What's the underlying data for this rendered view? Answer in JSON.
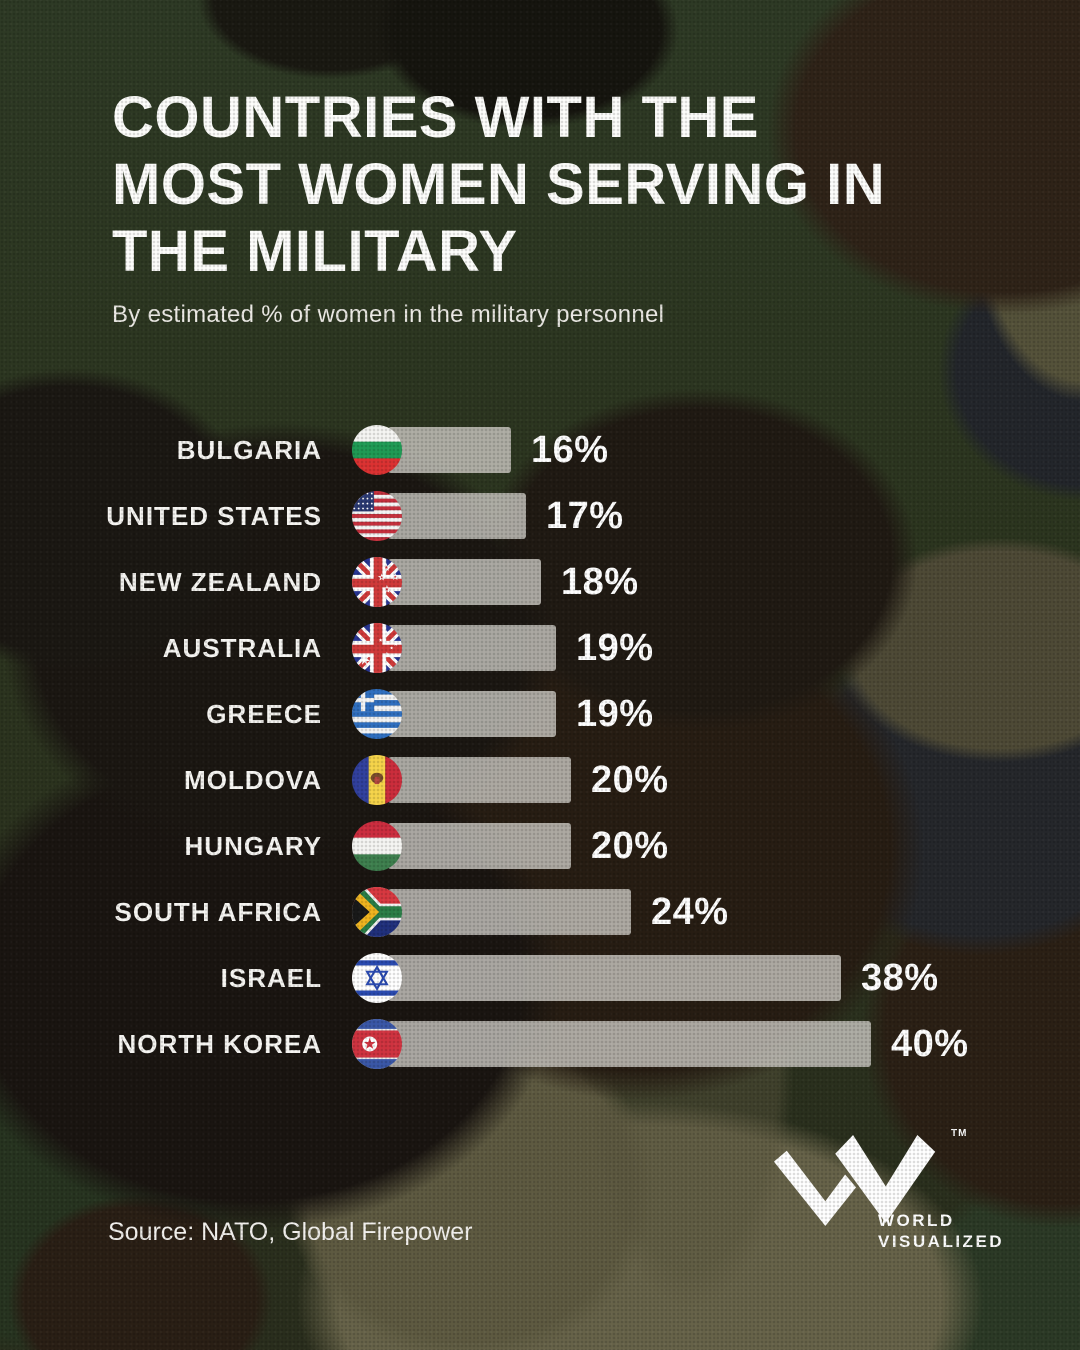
{
  "header": {
    "title_lines": [
      "COUNTRIES WITH THE",
      "MOST WOMEN SERVING IN",
      "THE MILITARY"
    ],
    "subtitle": "By estimated % of women in the military personnel"
  },
  "footer": {
    "source": "Source: NATO, Global Firepower",
    "logo": {
      "tm": "TM",
      "line1": "WORLD",
      "line2": "VISUALIZED"
    }
  },
  "colors": {
    "bar": "rgba(203,200,194,0.82)",
    "text": "#ffffff",
    "camo_palette": [
      "#2c351f",
      "#1a1712",
      "#2f2318",
      "#55523a",
      "#23262b",
      "#676349"
    ]
  },
  "chart_data": {
    "type": "bar",
    "orientation": "horizontal",
    "title": "Countries with the most women serving in the military",
    "subtitle": "By estimated % of women in the military personnel",
    "unit": "%",
    "xlim": [
      0,
      40
    ],
    "grid": false,
    "legend": false,
    "categories": [
      "BULGARIA",
      "UNITED STATES",
      "NEW ZEALAND",
      "AUSTRALIA",
      "GREECE",
      "MOLDOVA",
      "HUNGARY",
      "SOUTH AFRICA",
      "ISRAEL",
      "NORTH KOREA"
    ],
    "values": [
      16,
      17,
      18,
      19,
      19,
      20,
      20,
      24,
      38,
      40
    ],
    "value_labels": [
      "16%",
      "17%",
      "18%",
      "19%",
      "19%",
      "20%",
      "20%",
      "24%",
      "38%",
      "40%"
    ],
    "flag_icons": [
      "bulgaria",
      "united-states",
      "new-zealand",
      "australia",
      "greece",
      "moldova",
      "hungary",
      "south-africa",
      "israel",
      "north-korea"
    ],
    "source": "NATO, Global Firepower"
  }
}
